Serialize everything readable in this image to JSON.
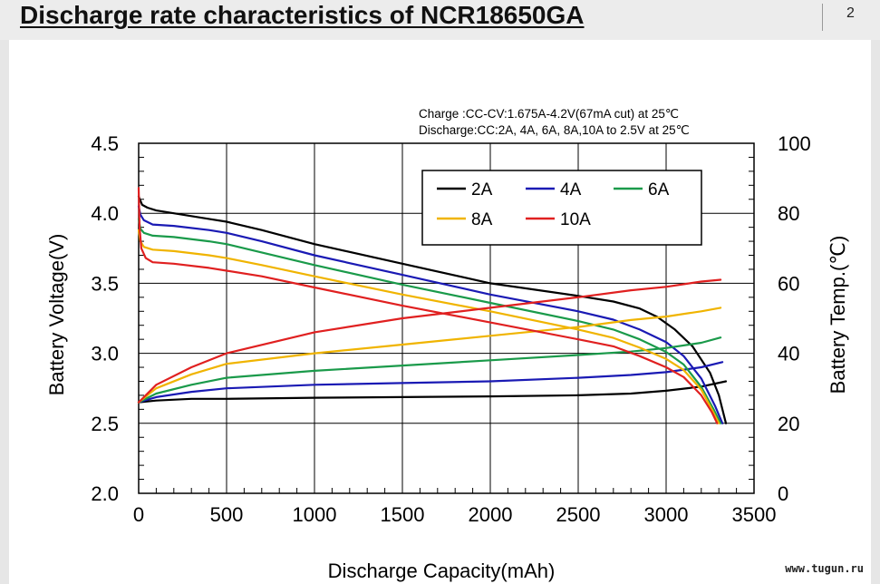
{
  "header": {
    "title": "Discharge rate characteristics of NCR18650GA",
    "page_number": "2"
  },
  "watermark": "www.tugun.ru",
  "chart_data": {
    "type": "line",
    "conditions": [
      "Charge :CC-CV:1.675A-4.2V(67mA cut) at 25℃",
      "Discharge:CC:2A, 4A, 6A, 8A,10A to 2.5V at 25℃"
    ],
    "xlabel": "Discharge Capacity(mAh)",
    "ylabel": "Battery Voltage(V)",
    "y2label": "Battery Temp.(℃)",
    "xlim": [
      0,
      3500
    ],
    "ylim": [
      2.0,
      4.5
    ],
    "y2lim": [
      0,
      100
    ],
    "xticks": [
      "0",
      "500",
      "1000",
      "1500",
      "2000",
      "2500",
      "3000",
      "3500"
    ],
    "yticks": [
      "2.0",
      "2.5",
      "3.0",
      "3.5",
      "4.0",
      "4.5"
    ],
    "y2ticks": [
      "0",
      "20",
      "40",
      "60",
      "80",
      "100"
    ],
    "grid": true,
    "legend_position": "top-right",
    "legend": [
      "2A",
      "4A",
      "6A",
      "8A",
      "10A"
    ],
    "series": [
      {
        "name": "2A",
        "color": "#000000",
        "voltage": [
          [
            0,
            4.12
          ],
          [
            20,
            4.06
          ],
          [
            50,
            4.04
          ],
          [
            100,
            4.02
          ],
          [
            200,
            4.0
          ],
          [
            400,
            3.96
          ],
          [
            500,
            3.94
          ],
          [
            700,
            3.88
          ],
          [
            1000,
            3.78
          ],
          [
            1500,
            3.64
          ],
          [
            2000,
            3.5
          ],
          [
            2500,
            3.41
          ],
          [
            2700,
            3.37
          ],
          [
            2850,
            3.32
          ],
          [
            2950,
            3.26
          ],
          [
            3050,
            3.17
          ],
          [
            3150,
            3.05
          ],
          [
            3250,
            2.86
          ],
          [
            3300,
            2.7
          ],
          [
            3340,
            2.5
          ]
        ],
        "temperature": [
          [
            0,
            26
          ],
          [
            100,
            26.5
          ],
          [
            300,
            27
          ],
          [
            500,
            27
          ],
          [
            1000,
            27.3
          ],
          [
            1500,
            27.5
          ],
          [
            2000,
            27.7
          ],
          [
            2500,
            28
          ],
          [
            2800,
            28.5
          ],
          [
            3000,
            29.3
          ],
          [
            3200,
            30.5
          ],
          [
            3340,
            32
          ]
        ]
      },
      {
        "name": "4A",
        "color": "#1a1ab4",
        "voltage": [
          [
            0,
            4.05
          ],
          [
            10,
            3.99
          ],
          [
            30,
            3.95
          ],
          [
            80,
            3.92
          ],
          [
            200,
            3.91
          ],
          [
            400,
            3.88
          ],
          [
            500,
            3.86
          ],
          [
            700,
            3.8
          ],
          [
            1000,
            3.7
          ],
          [
            1500,
            3.56
          ],
          [
            2000,
            3.42
          ],
          [
            2500,
            3.3
          ],
          [
            2700,
            3.24
          ],
          [
            2850,
            3.17
          ],
          [
            3000,
            3.08
          ],
          [
            3100,
            2.98
          ],
          [
            3200,
            2.82
          ],
          [
            3280,
            2.62
          ],
          [
            3320,
            2.5
          ]
        ],
        "temperature": [
          [
            0,
            26
          ],
          [
            100,
            27.5
          ],
          [
            300,
            29
          ],
          [
            500,
            30
          ],
          [
            1000,
            31
          ],
          [
            1500,
            31.5
          ],
          [
            2000,
            32
          ],
          [
            2500,
            33
          ],
          [
            2800,
            33.8
          ],
          [
            3000,
            34.6
          ],
          [
            3200,
            36
          ],
          [
            3320,
            37.5
          ]
        ]
      },
      {
        "name": "6A",
        "color": "#1a9a4a",
        "voltage": [
          [
            0,
            3.96
          ],
          [
            10,
            3.89
          ],
          [
            30,
            3.86
          ],
          [
            80,
            3.84
          ],
          [
            200,
            3.83
          ],
          [
            400,
            3.8
          ],
          [
            500,
            3.78
          ],
          [
            700,
            3.72
          ],
          [
            1000,
            3.63
          ],
          [
            1500,
            3.49
          ],
          [
            2000,
            3.36
          ],
          [
            2500,
            3.23
          ],
          [
            2700,
            3.17
          ],
          [
            2850,
            3.1
          ],
          [
            3000,
            3.01
          ],
          [
            3100,
            2.92
          ],
          [
            3200,
            2.76
          ],
          [
            3270,
            2.6
          ],
          [
            3310,
            2.5
          ]
        ],
        "temperature": [
          [
            0,
            26
          ],
          [
            100,
            28.5
          ],
          [
            300,
            31
          ],
          [
            500,
            33
          ],
          [
            1000,
            35
          ],
          [
            1500,
            36.5
          ],
          [
            2000,
            38
          ],
          [
            2500,
            39.5
          ],
          [
            2800,
            40.5
          ],
          [
            3000,
            41.5
          ],
          [
            3200,
            43
          ],
          [
            3310,
            44.5
          ]
        ]
      },
      {
        "name": "8A",
        "color": "#f0b400",
        "voltage": [
          [
            0,
            3.88
          ],
          [
            10,
            3.8
          ],
          [
            30,
            3.76
          ],
          [
            80,
            3.74
          ],
          [
            200,
            3.73
          ],
          [
            400,
            3.7
          ],
          [
            500,
            3.68
          ],
          [
            700,
            3.63
          ],
          [
            1000,
            3.55
          ],
          [
            1500,
            3.42
          ],
          [
            2000,
            3.3
          ],
          [
            2500,
            3.17
          ],
          [
            2700,
            3.11
          ],
          [
            2850,
            3.04
          ],
          [
            3000,
            2.96
          ],
          [
            3100,
            2.88
          ],
          [
            3200,
            2.74
          ],
          [
            3260,
            2.6
          ],
          [
            3300,
            2.5
          ]
        ],
        "temperature": [
          [
            0,
            26
          ],
          [
            100,
            30
          ],
          [
            300,
            34
          ],
          [
            500,
            37
          ],
          [
            1000,
            40
          ],
          [
            1500,
            42.5
          ],
          [
            2000,
            45
          ],
          [
            2500,
            47.5
          ],
          [
            2800,
            49.5
          ],
          [
            3000,
            50.5
          ],
          [
            3200,
            52
          ],
          [
            3310,
            53
          ]
        ]
      },
      {
        "name": "10A",
        "color": "#e02020",
        "voltage": [
          [
            0,
            4.18
          ],
          [
            5,
            3.9
          ],
          [
            15,
            3.75
          ],
          [
            40,
            3.68
          ],
          [
            80,
            3.65
          ],
          [
            200,
            3.64
          ],
          [
            400,
            3.61
          ],
          [
            500,
            3.59
          ],
          [
            700,
            3.55
          ],
          [
            1000,
            3.47
          ],
          [
            1500,
            3.34
          ],
          [
            2000,
            3.22
          ],
          [
            2500,
            3.1
          ],
          [
            2700,
            3.05
          ],
          [
            2850,
            2.98
          ],
          [
            3000,
            2.9
          ],
          [
            3100,
            2.83
          ],
          [
            3200,
            2.7
          ],
          [
            3260,
            2.58
          ],
          [
            3290,
            2.5
          ]
        ],
        "temperature": [
          [
            0,
            26
          ],
          [
            100,
            31
          ],
          [
            300,
            36
          ],
          [
            500,
            40
          ],
          [
            1000,
            46
          ],
          [
            1500,
            50
          ],
          [
            2000,
            53
          ],
          [
            2500,
            56
          ],
          [
            2800,
            58
          ],
          [
            3000,
            59
          ],
          [
            3200,
            60.5
          ],
          [
            3310,
            61
          ]
        ]
      }
    ]
  }
}
